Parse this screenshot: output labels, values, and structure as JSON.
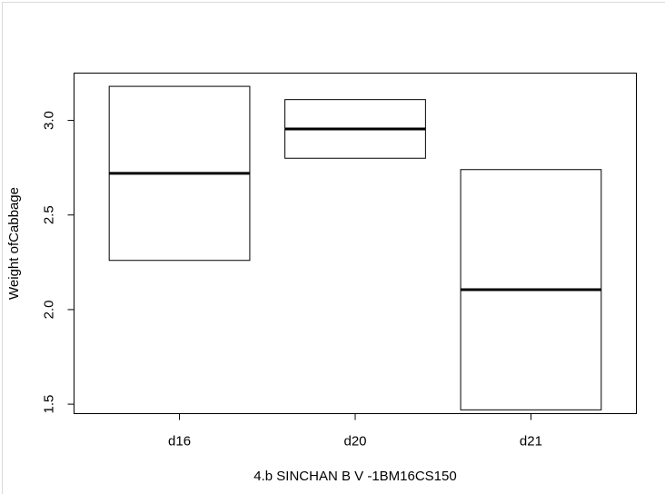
{
  "chart_data": {
    "type": "box",
    "title": "",
    "xlabel": "4.b SINCHAN B V -1BM16CS150",
    "ylabel": "Weight ofCabbage",
    "categories": [
      "d16",
      "d20",
      "d21"
    ],
    "boxes": [
      {
        "name": "d16",
        "q1": 2.26,
        "median": 2.72,
        "q3": 3.18
      },
      {
        "name": "d20",
        "q1": 2.8,
        "median": 2.955,
        "q3": 3.11
      },
      {
        "name": "d21",
        "q1": 1.47,
        "median": 2.105,
        "q3": 2.74
      }
    ],
    "yticks": [
      "1.5",
      "2.0",
      "2.5",
      "3.0"
    ],
    "ylim": [
      1.45,
      3.25
    ],
    "grid": false,
    "colors": {
      "box_stroke": "#000000",
      "box_fill": "#ffffff",
      "median": "#000000"
    }
  }
}
